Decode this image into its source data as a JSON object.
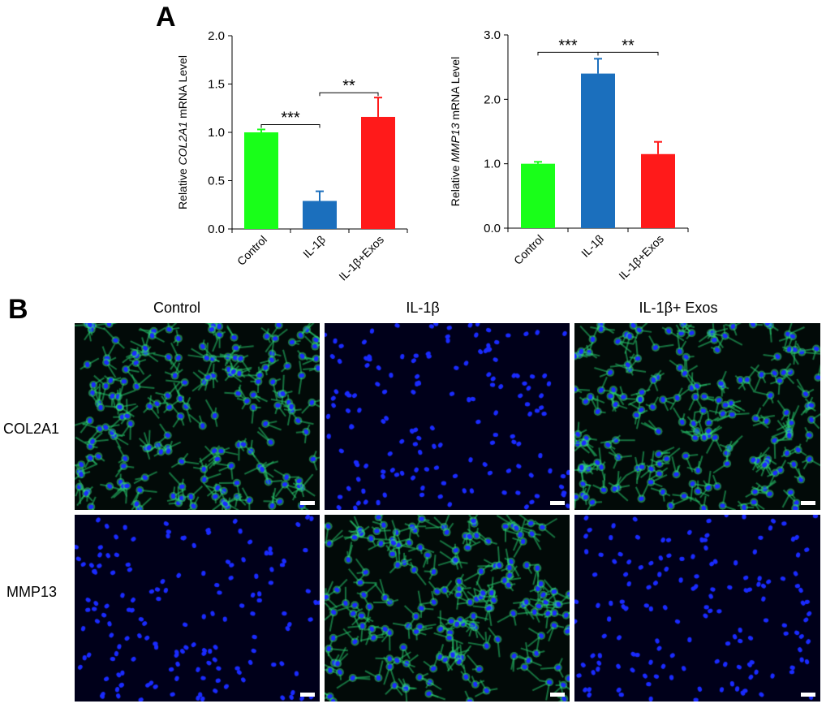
{
  "panel_labels": {
    "a": "A",
    "b": "B"
  },
  "colors": {
    "control": "#19ff19",
    "il1b": "#1b6fbd",
    "il1b_exos": "#ff1a1a",
    "error": "#000000"
  },
  "chart_data": [
    {
      "type": "bar",
      "ylabel_prefix": "Relative ",
      "ylabel_gene": "COL2A1",
      "ylabel_suffix": " mRNA Level",
      "categories": [
        "Control",
        "IL-1β",
        "IL-1β+Exos"
      ],
      "values": [
        1.0,
        0.29,
        1.16
      ],
      "errors": [
        0.03,
        0.1,
        0.2
      ],
      "colors": [
        "#19ff19",
        "#1b6fbd",
        "#ff1a1a"
      ],
      "ylim": [
        0,
        2.0
      ],
      "yticks": [
        "0.0",
        "0.5",
        "1.0",
        "1.5",
        "2.0"
      ],
      "significance": [
        {
          "from": 0,
          "to": 1,
          "label": "***",
          "y": 1.08
        },
        {
          "from": 1,
          "to": 2,
          "label": "**",
          "y": 1.41
        }
      ]
    },
    {
      "type": "bar",
      "ylabel_prefix": "Relative ",
      "ylabel_gene": "MMP13",
      "ylabel_suffix": " mRNA Level",
      "categories": [
        "Control",
        "IL-1β",
        "IL-1β+Exos"
      ],
      "values": [
        1.0,
        2.4,
        1.15
      ],
      "errors": [
        0.03,
        0.23,
        0.19
      ],
      "colors": [
        "#19ff19",
        "#1b6fbd",
        "#ff1a1a"
      ],
      "ylim": [
        0,
        3.0
      ],
      "yticks": [
        "0.0",
        "1.0",
        "2.0",
        "3.0"
      ],
      "significance": [
        {
          "from": 0,
          "to": 1,
          "label": "***",
          "y": 2.73
        },
        {
          "from": 1,
          "to": 2,
          "label": "**",
          "y": 2.73
        }
      ]
    }
  ],
  "micrographs": {
    "columns": [
      "Control",
      "IL-1β",
      "IL-1β+ Exos"
    ],
    "rows": [
      "COL2A1",
      "MMP13"
    ],
    "green_signal": [
      [
        0.7,
        0.0,
        0.8
      ],
      [
        0.0,
        0.8,
        0.0
      ]
    ]
  }
}
